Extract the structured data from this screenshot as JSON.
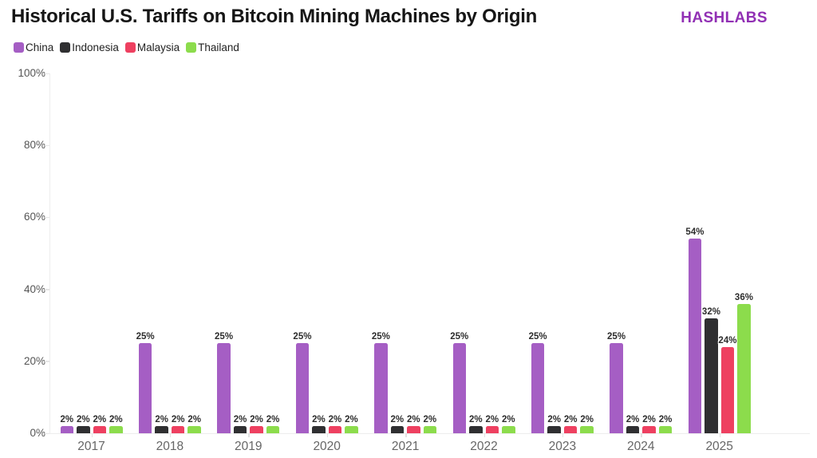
{
  "header": {
    "title": "Historical U.S. Tariffs on Bitcoin Mining Machines by Origin",
    "brand": "HASHLABS"
  },
  "chart_data": {
    "type": "bar",
    "title": "Historical U.S. Tariffs on Bitcoin Mining Machines by Origin",
    "categories": [
      "2017",
      "2018",
      "2019",
      "2020",
      "2021",
      "2022",
      "2023",
      "2024",
      "2025"
    ],
    "series": [
      {
        "name": "China",
        "color": "#a55ec4",
        "values": [
          2,
          25,
          25,
          25,
          25,
          25,
          25,
          25,
          54
        ]
      },
      {
        "name": "Indonesia",
        "color": "#2f2f31",
        "values": [
          2,
          2,
          2,
          2,
          2,
          2,
          2,
          2,
          32
        ]
      },
      {
        "name": "Malaysia",
        "color": "#ee4060",
        "values": [
          2,
          2,
          2,
          2,
          2,
          2,
          2,
          2,
          24
        ]
      },
      {
        "name": "Thailand",
        "color": "#8cdc4c",
        "values": [
          2,
          2,
          2,
          2,
          2,
          2,
          2,
          2,
          36
        ]
      }
    ],
    "xlabel": "",
    "ylabel": "",
    "ylim": [
      0,
      100
    ],
    "yticks": [
      0,
      20,
      40,
      60,
      80,
      100
    ],
    "ytick_suffix": "%",
    "bar_label_suffix": "%",
    "grid": false,
    "legend_position": "top-left"
  },
  "colors": {
    "brand": "#9130b4",
    "title_text": "#161616",
    "axis_text": "#555555",
    "xaxis_text": "#666666",
    "bar_label_text": "#2d2d2d",
    "axis_line": "#ededed",
    "background": "#ffffff"
  }
}
